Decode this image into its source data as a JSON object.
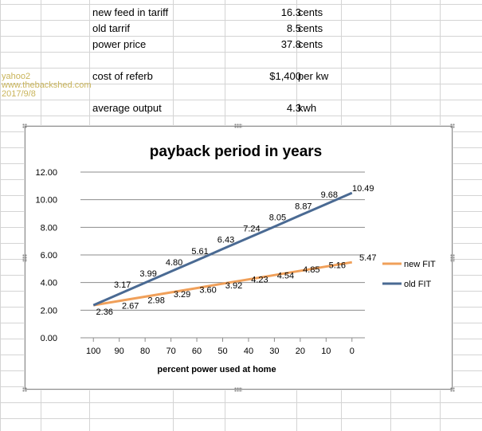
{
  "sheet": {
    "rows": [
      {
        "label": "new feed in tariff",
        "value": "16.3",
        "unit": "cents"
      },
      {
        "label": "old tarrif",
        "value": "8.5",
        "unit": "cents"
      },
      {
        "label": "power price",
        "value": "37.8",
        "unit": "cents"
      },
      {
        "label": "cost of referb",
        "value": "$1,400",
        "unit": "per kw"
      },
      {
        "label": "average output",
        "value": "4.3",
        "unit": "kwh"
      }
    ]
  },
  "watermark": {
    "line1": "yahoo2",
    "line2": "www.thebackshed.com",
    "line3": "2017/9/8",
    "color": "#c9b45a"
  },
  "chart_data": {
    "type": "line",
    "title": "payback period in years",
    "xlabel": "percent power used at home",
    "ylabel": "",
    "categories": [
      "100",
      "90",
      "80",
      "70",
      "60",
      "50",
      "40",
      "30",
      "20",
      "10",
      "0"
    ],
    "ylim": [
      0,
      12
    ],
    "y_ticks": [
      "0.00",
      "2.00",
      "4.00",
      "6.00",
      "8.00",
      "10.00",
      "12.00"
    ],
    "grid": true,
    "legend": "right",
    "series": [
      {
        "name": "new FIT",
        "color": "#f0a05a",
        "values": [
          2.36,
          2.67,
          2.98,
          3.29,
          3.6,
          3.92,
          4.23,
          4.54,
          4.85,
          5.16,
          5.47
        ],
        "labels": [
          "2.36",
          "2.67",
          "2.98",
          "3.29",
          "3.60",
          "3.92",
          "4.23",
          "4.54",
          "4.85",
          "5.16",
          "5.47"
        ]
      },
      {
        "name": "old FIT",
        "color": "#4a6a93",
        "values": [
          2.36,
          3.17,
          3.99,
          4.8,
          5.61,
          6.43,
          7.24,
          8.05,
          8.87,
          9.68,
          10.49
        ],
        "labels": [
          "",
          "3.17",
          "3.99",
          "4.80",
          "5.61",
          "6.43",
          "7.24",
          "8.05",
          "8.87",
          "9.68",
          "10.49"
        ]
      }
    ]
  }
}
